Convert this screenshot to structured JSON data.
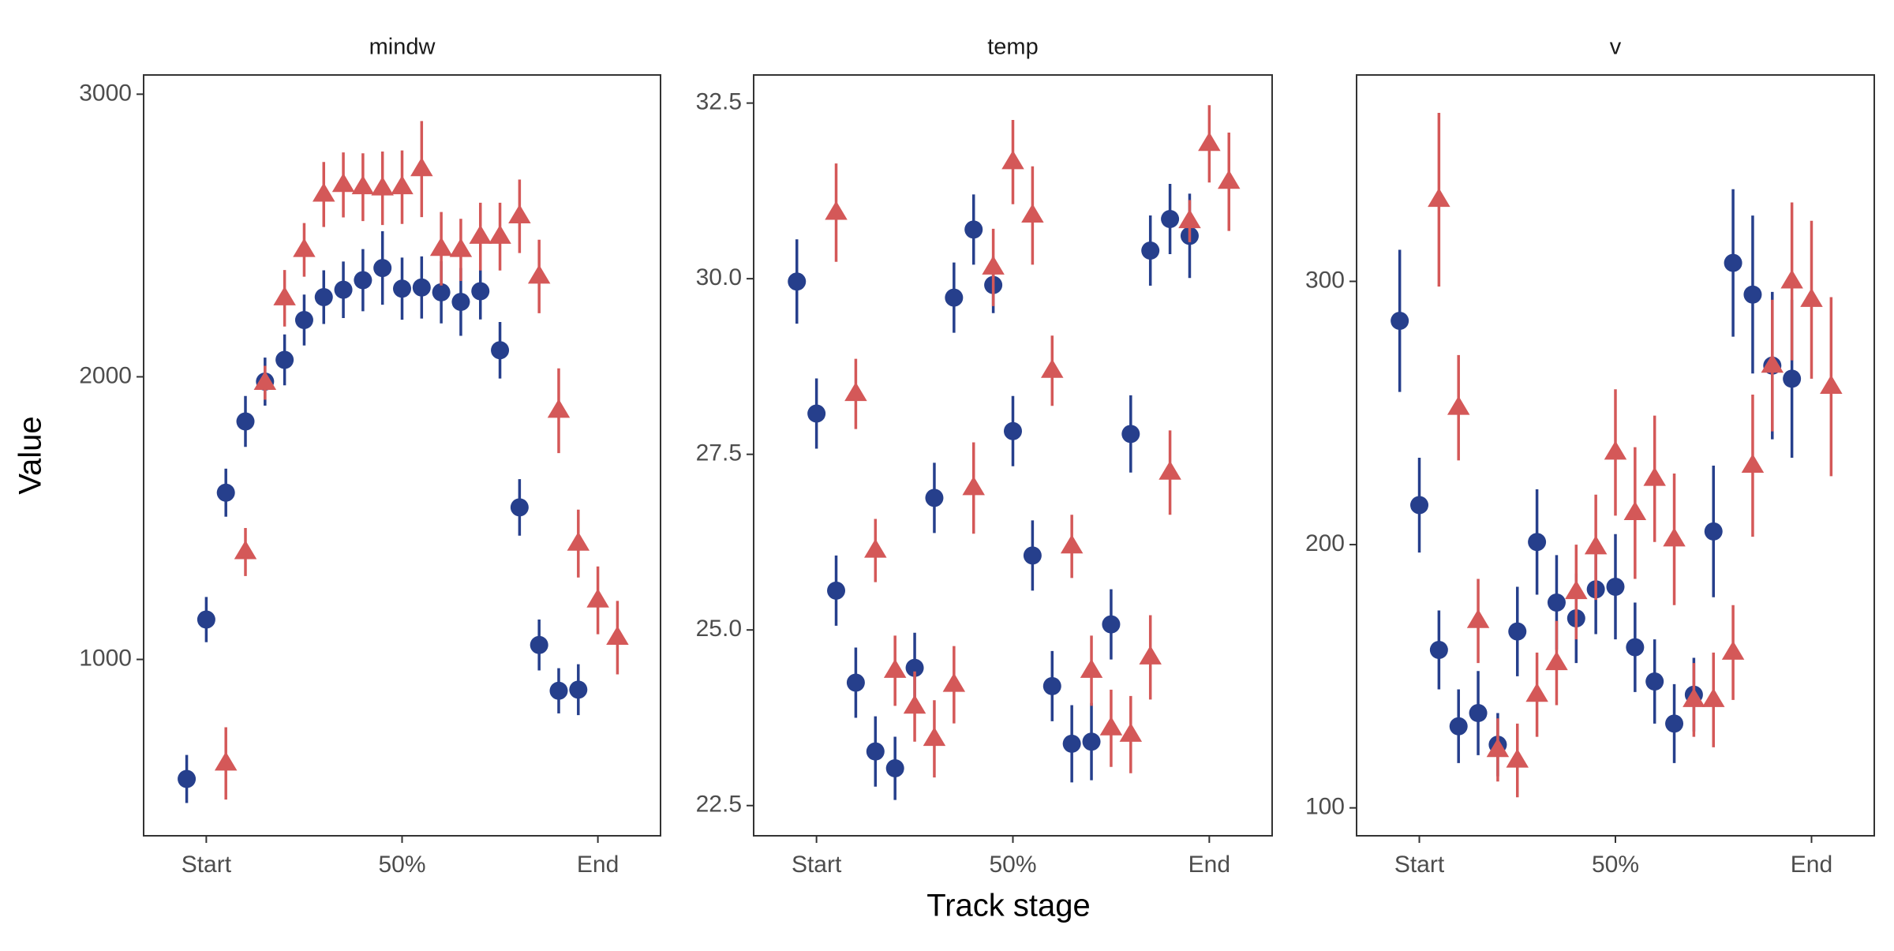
{
  "y_label": "Value",
  "x_label": "Track stage",
  "chart_data": [
    {
      "type": "scatter",
      "title": "mindw",
      "xlim": [
        -0.16,
        1.16
      ],
      "ylim": [
        376,
        3068
      ],
      "xticks": [
        {
          "value": 0,
          "label": "Start"
        },
        {
          "value": 0.5,
          "label": "50%"
        },
        {
          "value": 1,
          "label": "End"
        }
      ],
      "yticks": [
        1000,
        2000,
        3000
      ],
      "series": [
        {
          "color": "#263f8c",
          "marker": "circle",
          "x": [
            -0.05,
            0,
            0.05,
            0.1,
            0.15,
            0.2,
            0.25,
            0.3,
            0.35,
            0.4,
            0.45,
            0.5,
            0.55,
            0.6,
            0.65,
            0.7,
            0.75,
            0.8,
            0.85,
            0.9,
            0.95
          ],
          "values": [
            577,
            1141,
            1590,
            1842,
            1983,
            2060,
            2201,
            2282,
            2308,
            2342,
            2385,
            2312,
            2316,
            2299,
            2265,
            2303,
            2094,
            1538,
            1051,
            889,
            893
          ],
          "errors": [
            85,
            80,
            85,
            90,
            85,
            90,
            90,
            95,
            100,
            110,
            130,
            110,
            110,
            110,
            120,
            100,
            100,
            100,
            90,
            80,
            90
          ]
        },
        {
          "color": "#d45858",
          "marker": "triangle",
          "x": [
            0.05,
            0.1,
            0.15,
            0.2,
            0.25,
            0.3,
            0.35,
            0.4,
            0.45,
            0.5,
            0.55,
            0.6,
            0.65,
            0.7,
            0.75,
            0.8,
            0.85,
            0.9,
            0.95,
            1,
            1.05
          ],
          "values": [
            632,
            1380,
            1979,
            2278,
            2449,
            2645,
            2679,
            2671,
            2667,
            2671,
            2735,
            2453,
            2449,
            2496,
            2496,
            2568,
            2355,
            1880,
            1410,
            1209,
            1077
          ],
          "errors": [
            128,
            85,
            60,
            100,
            95,
            115,
            115,
            120,
            130,
            130,
            170,
            130,
            110,
            120,
            120,
            130,
            130,
            150,
            120,
            120,
            130
          ]
        }
      ]
    },
    {
      "type": "scatter",
      "title": "temp",
      "xlim": [
        -0.16,
        1.16
      ],
      "ylim": [
        22.07,
        32.9
      ],
      "xticks": [
        {
          "value": 0,
          "label": "Start"
        },
        {
          "value": 0.5,
          "label": "50%"
        },
        {
          "value": 1,
          "label": "End"
        }
      ],
      "yticks": [
        22.5,
        {
          "value": 25,
          "label": "25.0"
        },
        27.5,
        {
          "value": 30,
          "label": "30.0"
        },
        32.5
      ],
      "series": [
        {
          "color": "#263f8c",
          "marker": "circle",
          "x": [
            -0.05,
            0,
            0.05,
            0.1,
            0.15,
            0.2,
            0.25,
            0.3,
            0.35,
            0.4,
            0.45,
            0.5,
            0.55,
            0.6,
            0.65,
            0.7,
            0.75,
            0.8,
            0.85,
            0.9,
            0.95
          ],
          "values": [
            29.96,
            28.08,
            25.56,
            24.25,
            23.27,
            23.03,
            24.46,
            26.88,
            29.73,
            30.7,
            29.91,
            27.83,
            26.06,
            24.2,
            23.38,
            23.41,
            25.08,
            27.79,
            30.4,
            30.85,
            30.61
          ],
          "errors": [
            0.6,
            0.5,
            0.5,
            0.5,
            0.5,
            0.45,
            0.5,
            0.5,
            0.5,
            0.5,
            0.4,
            0.5,
            0.5,
            0.5,
            0.55,
            0.55,
            0.5,
            0.55,
            0.5,
            0.5,
            0.6
          ]
        },
        {
          "color": "#d45858",
          "marker": "triangle",
          "x": [
            0.05,
            0.1,
            0.15,
            0.2,
            0.25,
            0.3,
            0.35,
            0.4,
            0.45,
            0.5,
            0.55,
            0.6,
            0.65,
            0.7,
            0.75,
            0.8,
            0.85,
            0.9,
            0.95,
            1,
            1.05
          ],
          "values": [
            30.94,
            28.36,
            26.13,
            24.42,
            23.91,
            23.45,
            24.22,
            27.02,
            30.16,
            31.66,
            30.9,
            28.69,
            26.19,
            24.42,
            23.6,
            23.51,
            24.61,
            27.24,
            30.82,
            31.92,
            31.38
          ],
          "errors": [
            0.7,
            0.5,
            0.45,
            0.5,
            0.5,
            0.55,
            0.55,
            0.65,
            0.55,
            0.6,
            0.7,
            0.5,
            0.45,
            0.5,
            0.55,
            0.55,
            0.6,
            0.6,
            0.3,
            0.55,
            0.7
          ]
        }
      ]
    },
    {
      "type": "scatter",
      "title": "v",
      "xlim": [
        -0.16,
        1.16
      ],
      "ylim": [
        89.4,
        378.4
      ],
      "xticks": [
        {
          "value": 0,
          "label": "Start"
        },
        {
          "value": 0.5,
          "label": "50%"
        },
        {
          "value": 1,
          "label": "End"
        }
      ],
      "yticks": [
        100,
        200,
        300
      ],
      "series": [
        {
          "color": "#263f8c",
          "marker": "circle",
          "x": [
            -0.05,
            0,
            0.05,
            0.1,
            0.15,
            0.2,
            0.25,
            0.3,
            0.35,
            0.4,
            0.45,
            0.5,
            0.55,
            0.6,
            0.65,
            0.7,
            0.75,
            0.8,
            0.85,
            0.9,
            0.95
          ],
          "values": [
            285,
            215,
            160,
            131,
            136,
            124,
            167,
            201,
            178,
            172,
            183,
            184,
            161,
            148,
            132,
            143,
            205,
            307,
            295,
            268,
            263
          ],
          "errors": [
            27,
            18,
            15,
            14,
            16,
            12,
            17,
            20,
            18,
            17,
            17,
            20,
            17,
            16,
            15,
            14,
            25,
            28,
            30,
            28,
            30
          ]
        },
        {
          "color": "#d45858",
          "marker": "triangle",
          "x": [
            0.05,
            0.1,
            0.15,
            0.2,
            0.25,
            0.3,
            0.35,
            0.4,
            0.45,
            0.5,
            0.55,
            0.6,
            0.65,
            0.7,
            0.75,
            0.8,
            0.85,
            0.9,
            0.95,
            1,
            1.05
          ],
          "values": [
            331,
            252,
            171,
            122,
            118,
            143,
            155,
            182,
            199,
            235,
            212,
            225,
            202,
            141,
            141,
            159,
            230,
            268,
            300,
            293,
            260
          ],
          "errors": [
            33,
            20,
            16,
            12,
            14,
            16,
            16,
            18,
            20,
            24,
            25,
            24,
            25,
            14,
            18,
            18,
            27,
            25,
            30,
            30,
            34
          ]
        }
      ]
    }
  ]
}
